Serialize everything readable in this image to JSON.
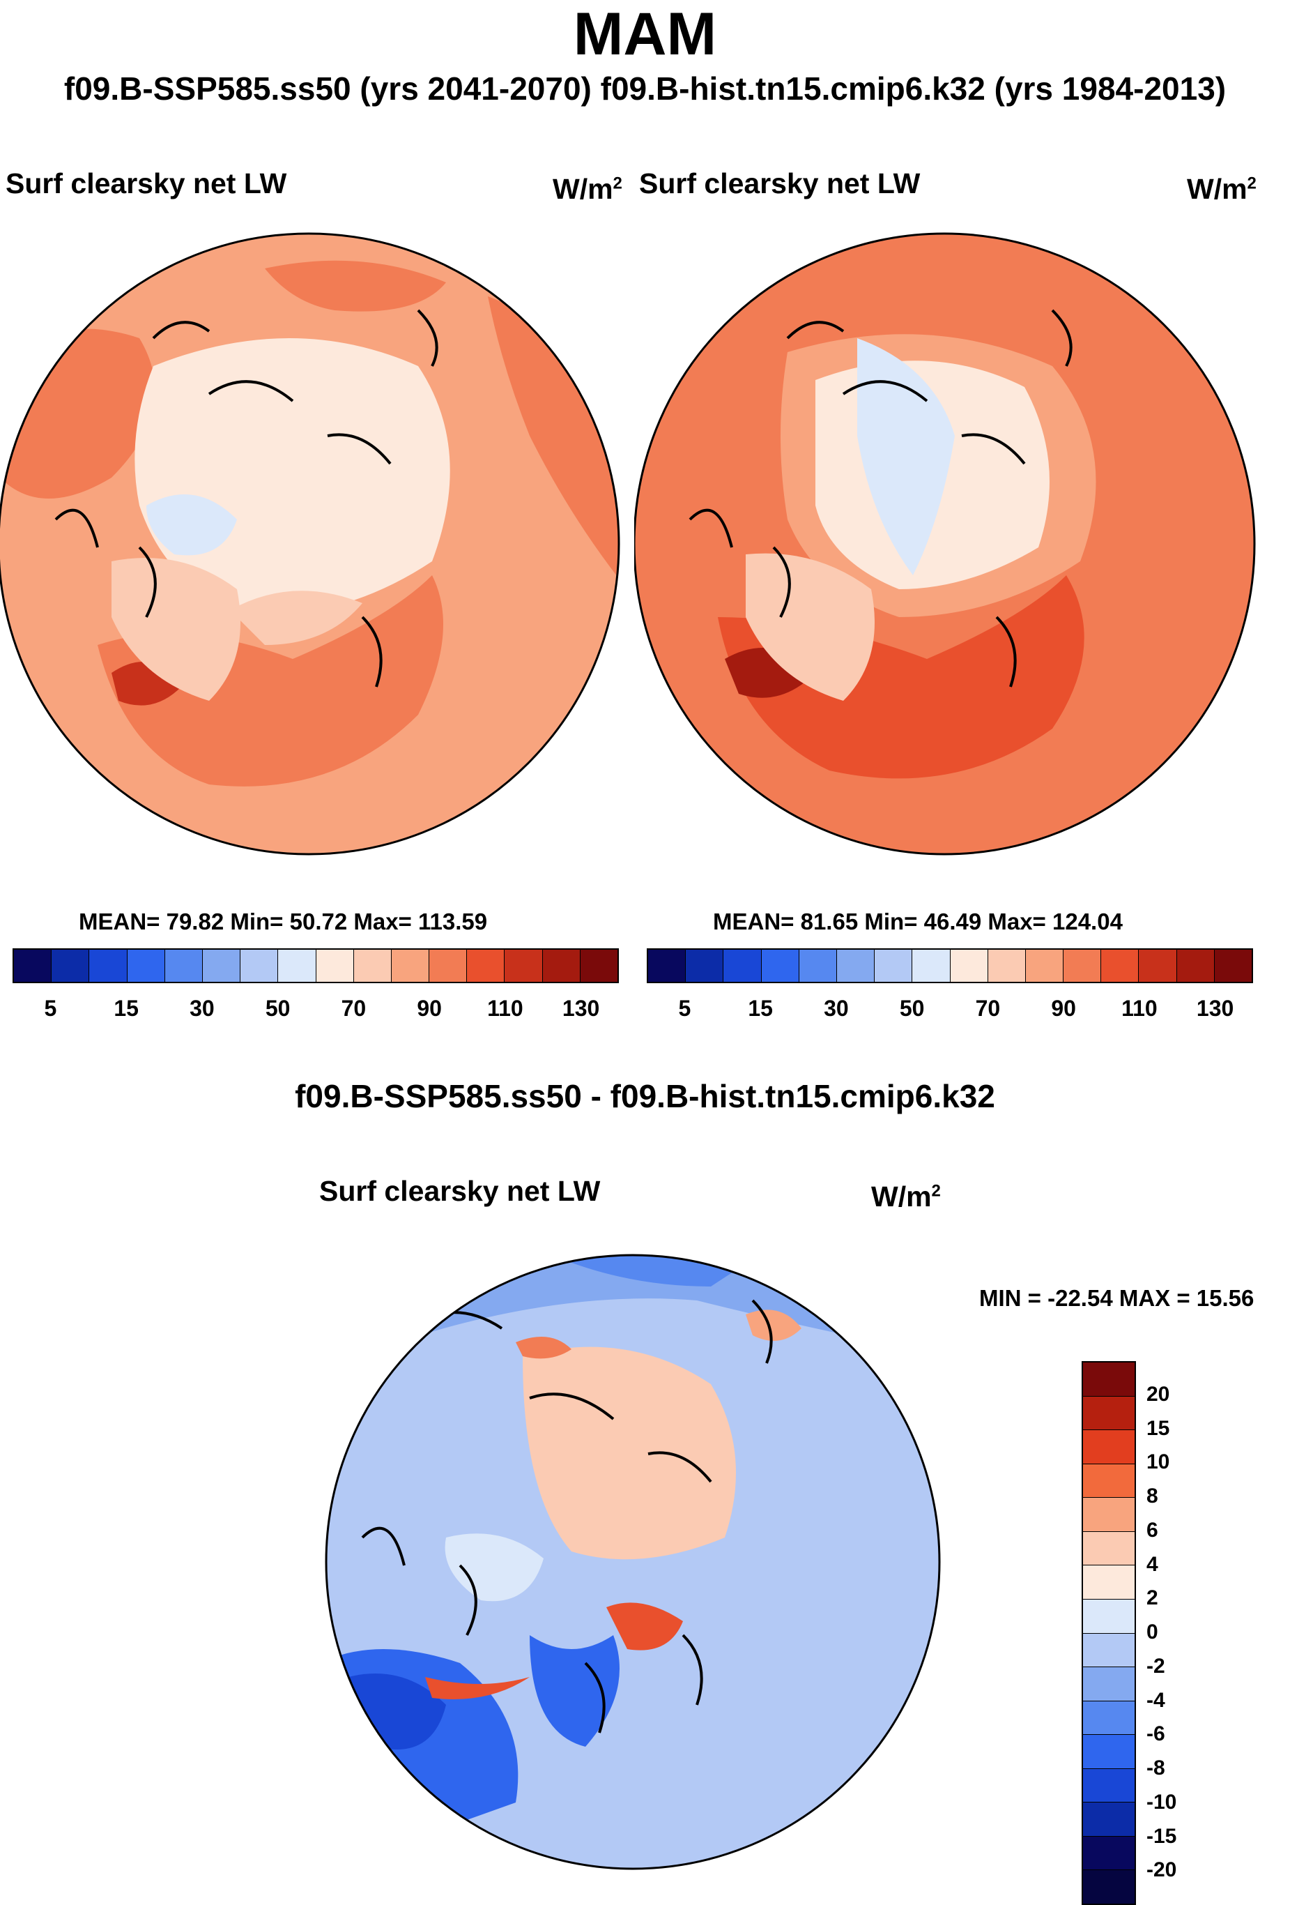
{
  "header": {
    "title": "MAM",
    "subtitle": "f09.B-SSP585.ss50 (yrs 2041-2070)  f09.B-hist.tn15.cmip6.k32 (yrs 1984-2013)",
    "diff_title": "f09.B-SSP585.ss50 - f09.B-hist.tn15.cmip6.k32"
  },
  "panels": [
    {
      "label": "Surf clearsky net LW",
      "unit": "W/m",
      "unit_sup": "2",
      "stats": "MEAN=  79.82  Min=  50.72  Max= 113.59"
    },
    {
      "label": "Surf clearsky net LW",
      "unit": "W/m",
      "unit_sup": "2",
      "stats": "MEAN=  81.65  Min=  46.49  Max= 124.04"
    },
    {
      "label": "Surf clearsky net LW",
      "unit": "W/m",
      "unit_sup": "2",
      "stats": "MIN = -22.54 MAX =  15.56"
    }
  ],
  "colorbar_field": {
    "ticks": [
      "5",
      "15",
      "30",
      "50",
      "70",
      "90",
      "110",
      "130"
    ],
    "colors": [
      "#08085e",
      "#0c2ca8",
      "#1947d6",
      "#2f66ee",
      "#5688f0",
      "#84a9f0",
      "#b3c9f5",
      "#dbe8fa",
      "#fde9dc",
      "#fbcbb3",
      "#f8a47e",
      "#f27c54",
      "#e9502d",
      "#c8311b",
      "#a41b0f",
      "#7a0a0a"
    ]
  },
  "colorbar_diff": {
    "ticks": [
      "20",
      "15",
      "10",
      "8",
      "6",
      "4",
      "2",
      "0",
      "-2",
      "-4",
      "-6",
      "-8",
      "-10",
      "-15",
      "-20"
    ],
    "colors": [
      "#7a0a0a",
      "#b5200f",
      "#e23e1f",
      "#f26a3c",
      "#f8a47e",
      "#fbcbb3",
      "#fde9dc",
      "#dbe8fa",
      "#b3c9f5",
      "#84a9f0",
      "#5688f0",
      "#2f66ee",
      "#1947d6",
      "#0c2ca8",
      "#08085e",
      "#050540"
    ]
  },
  "chart_data": [
    {
      "type": "heatmap",
      "title": "Surf clearsky net LW",
      "subtitle": "f09.B-SSP585.ss50 (yrs 2041-2070)",
      "units": "W/m2",
      "projection": "north polar stereographic",
      "mean": 79.82,
      "min": 50.72,
      "max": 113.59,
      "colorbar_levels": [
        5,
        10,
        15,
        20,
        30,
        40,
        50,
        60,
        70,
        80,
        90,
        100,
        110,
        120,
        130
      ]
    },
    {
      "type": "heatmap",
      "title": "Surf clearsky net LW",
      "subtitle": "f09.B-hist.tn15.cmip6.k32 (yrs 1984-2013)",
      "units": "W/m2",
      "projection": "north polar stereographic",
      "mean": 81.65,
      "min": 46.49,
      "max": 124.04,
      "colorbar_levels": [
        5,
        10,
        15,
        20,
        30,
        40,
        50,
        60,
        70,
        80,
        90,
        100,
        110,
        120,
        130
      ]
    },
    {
      "type": "heatmap",
      "title": "Surf clearsky net LW",
      "subtitle": "f09.B-SSP585.ss50 - f09.B-hist.tn15.cmip6.k32",
      "units": "W/m2",
      "projection": "north polar stereographic",
      "min": -22.54,
      "max": 15.56,
      "colorbar_levels": [
        -20,
        -15,
        -10,
        -8,
        -6,
        -4,
        -2,
        0,
        2,
        4,
        6,
        8,
        10,
        15,
        20
      ]
    }
  ]
}
